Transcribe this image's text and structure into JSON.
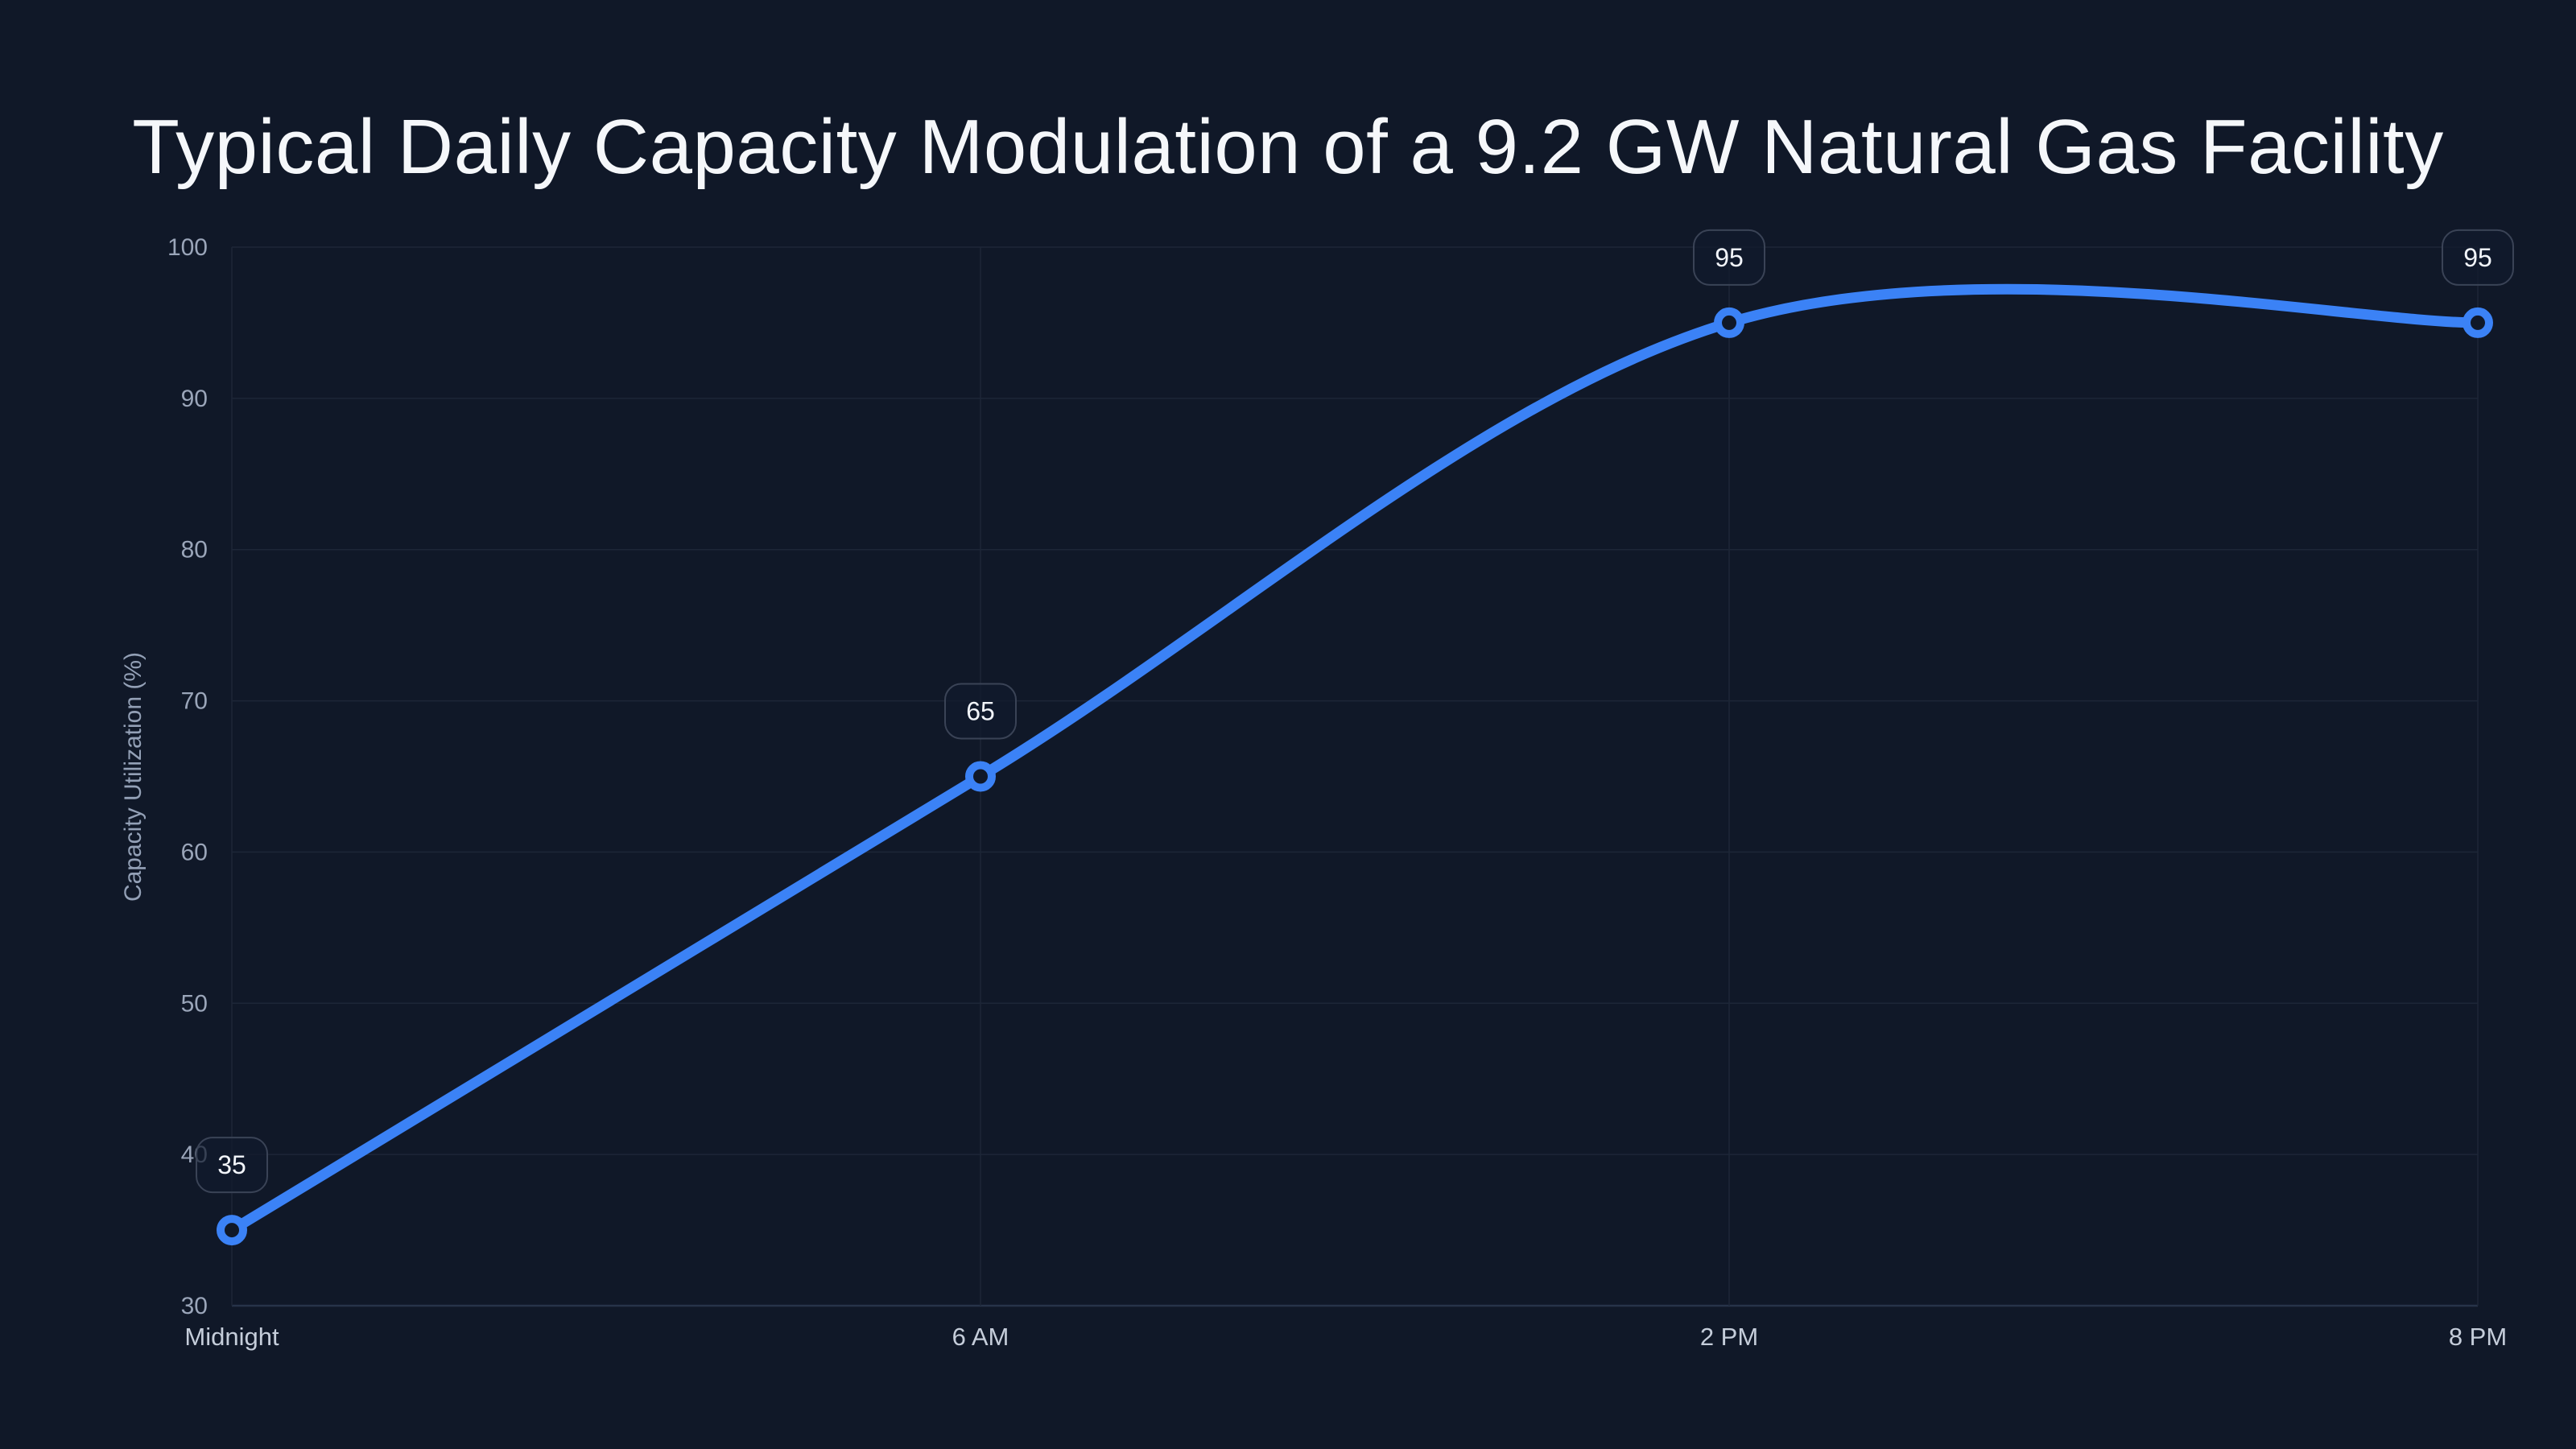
{
  "chart_data": {
    "type": "line",
    "title": "Typical Daily Capacity Modulation of a 9.2 GW Natural Gas Facility",
    "xlabel": "",
    "ylabel": "Capacity Utilization (%)",
    "categories": [
      "Midnight",
      "6 AM",
      "2 PM",
      "8 PM"
    ],
    "series": [
      {
        "name": "Capacity Utilization",
        "values": [
          35,
          65,
          95,
          95
        ]
      }
    ],
    "values": [
      35,
      65,
      95,
      95
    ],
    "data_labels": [
      35,
      65,
      95,
      95
    ],
    "ylim": [
      30,
      100
    ],
    "yticks": [
      30,
      40,
      50,
      60,
      70,
      80,
      90,
      100
    ],
    "grid": true,
    "legend": false,
    "smooth": true,
    "marker_style": "open-circle",
    "colors": {
      "background": "#101828",
      "line": "#3b82f6",
      "marker_fill": "#101828",
      "grid": "#1d2637",
      "axis_line": "#273349",
      "y_tick_text": "#9aa5b9",
      "x_tick_text": "#c5cdda",
      "axis_title_text": "#93a0b6",
      "title_text": "#f5f7fa",
      "label_box_bg": "rgba(17,26,44,0.72)",
      "label_box_border": "#3a4356",
      "label_text": "#f2f5fa"
    }
  }
}
